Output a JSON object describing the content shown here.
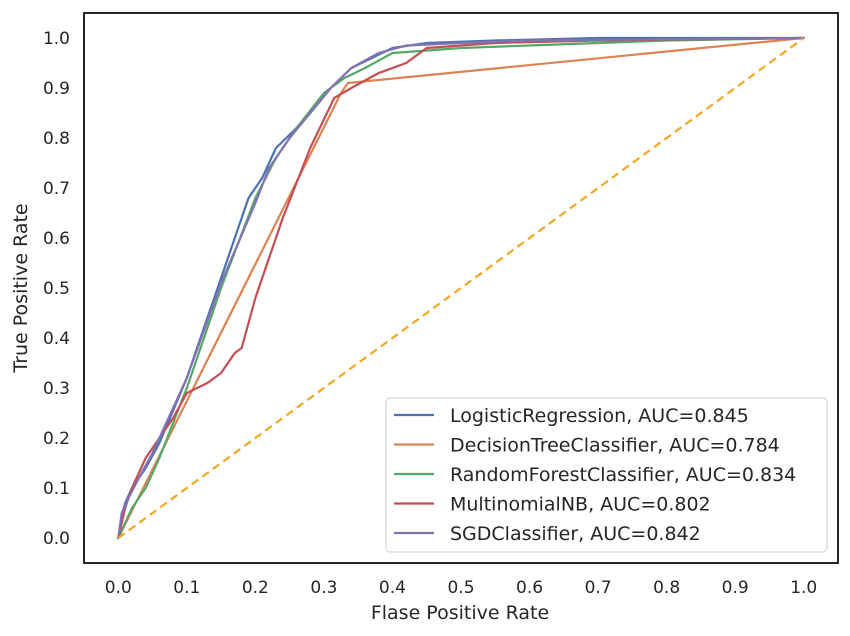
{
  "chart_data": {
    "type": "line",
    "title": "",
    "xlabel": "Flase Positive Rate",
    "ylabel": "True Positive Rate",
    "xlim": [
      -0.05,
      1.05
    ],
    "ylim": [
      -0.05,
      1.05
    ],
    "xticks": [
      "0.0",
      "0.1",
      "0.2",
      "0.3",
      "0.4",
      "0.5",
      "0.6",
      "0.7",
      "0.8",
      "0.9",
      "1.0"
    ],
    "yticks": [
      "0.0",
      "0.1",
      "0.2",
      "0.3",
      "0.4",
      "0.5",
      "0.6",
      "0.7",
      "0.8",
      "0.9",
      "1.0"
    ],
    "grid": false,
    "legend_position": "lower-right",
    "series": [
      {
        "name": "LogisticRegression, AUC=0.845",
        "color": "#4c72b0",
        "points": [
          [
            0,
            0
          ],
          [
            0.005,
            0.04
          ],
          [
            0.01,
            0.07
          ],
          [
            0.02,
            0.1
          ],
          [
            0.04,
            0.14
          ],
          [
            0.06,
            0.19
          ],
          [
            0.1,
            0.32
          ],
          [
            0.15,
            0.52
          ],
          [
            0.19,
            0.68
          ],
          [
            0.21,
            0.72
          ],
          [
            0.23,
            0.78
          ],
          [
            0.26,
            0.82
          ],
          [
            0.28,
            0.85
          ],
          [
            0.31,
            0.9
          ],
          [
            0.34,
            0.94
          ],
          [
            0.37,
            0.96
          ],
          [
            0.4,
            0.98
          ],
          [
            0.45,
            0.99
          ],
          [
            0.55,
            0.995
          ],
          [
            0.7,
            1.0
          ],
          [
            1.0,
            1.0
          ]
        ]
      },
      {
        "name": "DecisionTreeClassifier, AUC=0.784",
        "color": "#dd8452",
        "points": [
          [
            0,
            0
          ],
          [
            0.325,
            0.89
          ],
          [
            0.335,
            0.91
          ],
          [
            1.0,
            1.0
          ]
        ]
      },
      {
        "name": "RandomForestClassifier, AUC=0.834",
        "color": "#55a868",
        "points": [
          [
            0,
            0
          ],
          [
            0.01,
            0.03
          ],
          [
            0.02,
            0.06
          ],
          [
            0.04,
            0.1
          ],
          [
            0.06,
            0.16
          ],
          [
            0.1,
            0.3
          ],
          [
            0.15,
            0.5
          ],
          [
            0.2,
            0.68
          ],
          [
            0.23,
            0.76
          ],
          [
            0.26,
            0.82
          ],
          [
            0.3,
            0.89
          ],
          [
            0.33,
            0.92
          ],
          [
            0.36,
            0.94
          ],
          [
            0.4,
            0.97
          ],
          [
            0.5,
            0.98
          ],
          [
            0.7,
            0.99
          ],
          [
            0.8,
            0.995
          ],
          [
            1.0,
            1.0
          ]
        ]
      },
      {
        "name": "MultinomialNB, AUC=0.802",
        "color": "#c44e52",
        "points": [
          [
            0,
            0
          ],
          [
            0.01,
            0.06
          ],
          [
            0.02,
            0.1
          ],
          [
            0.04,
            0.16
          ],
          [
            0.06,
            0.2
          ],
          [
            0.08,
            0.24
          ],
          [
            0.1,
            0.29
          ],
          [
            0.13,
            0.31
          ],
          [
            0.15,
            0.33
          ],
          [
            0.17,
            0.37
          ],
          [
            0.18,
            0.38
          ],
          [
            0.2,
            0.48
          ],
          [
            0.24,
            0.64
          ],
          [
            0.28,
            0.78
          ],
          [
            0.315,
            0.88
          ],
          [
            0.34,
            0.9
          ],
          [
            0.38,
            0.93
          ],
          [
            0.42,
            0.95
          ],
          [
            0.45,
            0.98
          ],
          [
            0.55,
            0.99
          ],
          [
            0.7,
            0.995
          ],
          [
            1.0,
            1.0
          ]
        ]
      },
      {
        "name": "SGDClassifier, AUC=0.842",
        "color": "#8172b3",
        "points": [
          [
            0,
            0
          ],
          [
            0.005,
            0.05
          ],
          [
            0.015,
            0.08
          ],
          [
            0.03,
            0.12
          ],
          [
            0.05,
            0.17
          ],
          [
            0.1,
            0.32
          ],
          [
            0.15,
            0.51
          ],
          [
            0.2,
            0.67
          ],
          [
            0.22,
            0.74
          ],
          [
            0.25,
            0.8
          ],
          [
            0.28,
            0.85
          ],
          [
            0.31,
            0.9
          ],
          [
            0.34,
            0.94
          ],
          [
            0.38,
            0.97
          ],
          [
            0.42,
            0.985
          ],
          [
            0.5,
            0.99
          ],
          [
            0.6,
            0.995
          ],
          [
            1.0,
            1.0
          ]
        ]
      }
    ],
    "reference_line": {
      "color": "#f5a623",
      "style": "dashed",
      "points": [
        [
          0,
          0
        ],
        [
          1,
          1
        ]
      ]
    }
  }
}
